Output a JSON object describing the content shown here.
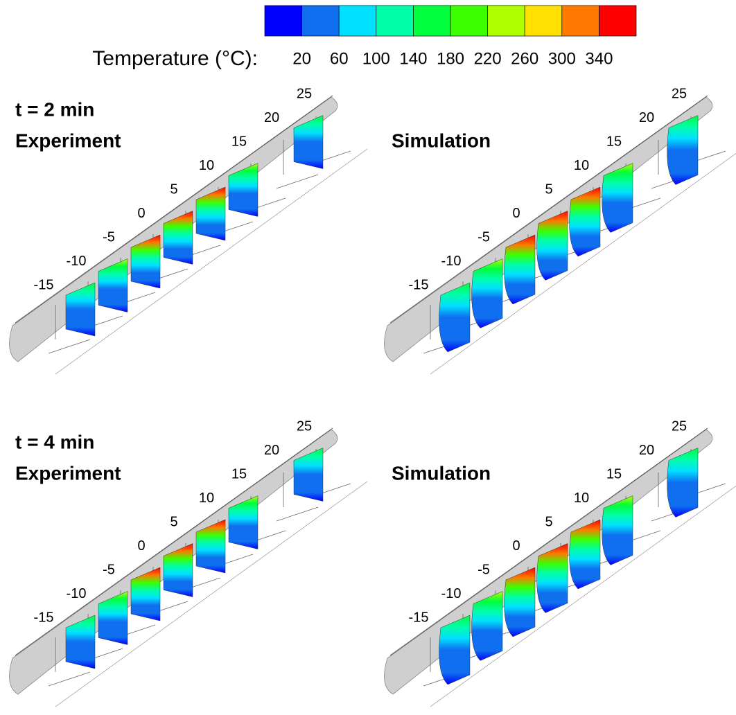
{
  "colorbar": {
    "label": "Temperature (°C):",
    "ticks": [
      20,
      60,
      100,
      140,
      180,
      220,
      260,
      300,
      340
    ],
    "colors": [
      "#0000ff",
      "#0f6fef",
      "#00e0ff",
      "#00ffa8",
      "#00ff3c",
      "#3cff00",
      "#b0ff00",
      "#ffe000",
      "#ff7800",
      "#ff0000"
    ]
  },
  "rows": [
    {
      "time": "t = 2 min",
      "panels": [
        {
          "method": "Experiment",
          "positions": [
            -15,
            -10,
            -5,
            0,
            5,
            10,
            15,
            20,
            25
          ]
        },
        {
          "method": "Simulation",
          "positions": [
            -15,
            -10,
            -5,
            0,
            5,
            10,
            15,
            20,
            25
          ]
        }
      ]
    },
    {
      "time": "t = 4 min",
      "panels": [
        {
          "method": "Experiment",
          "positions": [
            -15,
            -10,
            -5,
            0,
            5,
            10,
            15,
            20,
            25
          ]
        },
        {
          "method": "Simulation",
          "positions": [
            -15,
            -10,
            -5,
            0,
            5,
            10,
            15,
            20,
            25
          ]
        }
      ]
    }
  ]
}
